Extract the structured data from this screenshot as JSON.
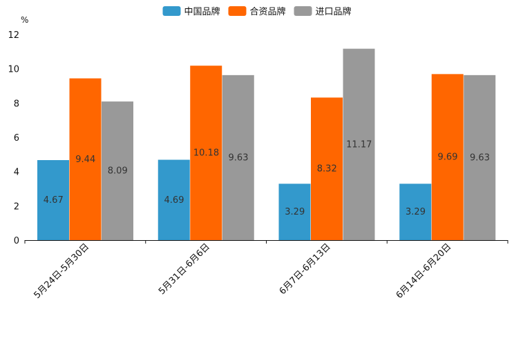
{
  "chart_data": {
    "type": "bar",
    "title": "",
    "xlabel": "",
    "ylabel": "%",
    "ylim": [
      0,
      12
    ],
    "yticks": [
      0,
      2,
      4,
      6,
      8,
      10,
      12
    ],
    "grid": false,
    "legend_position": "top-center",
    "categories": [
      "5月24日-5月30日",
      "5月31日-6月6日",
      "6月7日-6月13日",
      "6月14日-6月20日"
    ],
    "series": [
      {
        "name": "中国品牌",
        "color": "#3399cc",
        "values": [
          4.67,
          4.69,
          3.29,
          3.29
        ]
      },
      {
        "name": "合资品牌",
        "color": "#ff6600",
        "values": [
          9.44,
          10.18,
          8.32,
          9.69
        ]
      },
      {
        "name": "进口品牌",
        "color": "#999999",
        "values": [
          8.09,
          9.63,
          11.17,
          9.63
        ]
      }
    ]
  }
}
